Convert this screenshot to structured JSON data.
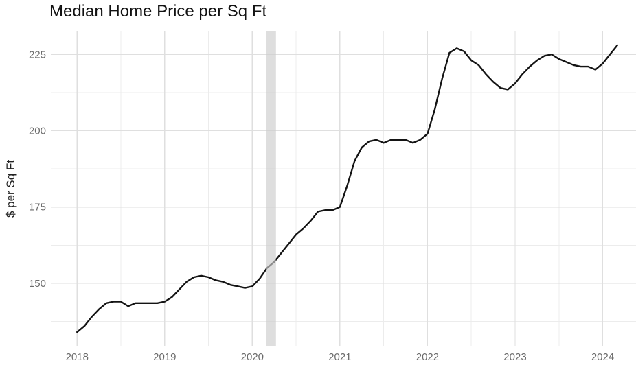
{
  "chart_data": {
    "type": "line",
    "title": "Median Home Price per Sq Ft",
    "xlabel": "",
    "ylabel": "$ per Sq Ft",
    "frequency": "monthly",
    "x_start": "2018-01",
    "x_end": "2024-03",
    "x_start_year": 2018,
    "series": [
      {
        "name": "median_home_price_per_sqft",
        "values": [
          134,
          136,
          139,
          141.5,
          143.5,
          144,
          144,
          142.5,
          143.5,
          143.5,
          143.5,
          143.5,
          144,
          145.5,
          148,
          150.5,
          152,
          152.5,
          152,
          151,
          150.5,
          149.5,
          149,
          148.5,
          149,
          151.5,
          155,
          157,
          160,
          163,
          166,
          168,
          170.5,
          173.5,
          174,
          174,
          175,
          182,
          190,
          194.5,
          196.5,
          197,
          196,
          197,
          197,
          197,
          196,
          197,
          199,
          207,
          217,
          225.5,
          227,
          226,
          223,
          221.5,
          218.5,
          216,
          214,
          213.5,
          215.5,
          218.5,
          221,
          223,
          224.5,
          225,
          223.5,
          222.5,
          221.5,
          221,
          221,
          220,
          222,
          225,
          228
        ]
      }
    ],
    "x_ticks": [
      2018,
      2019,
      2020,
      2021,
      2022,
      2023,
      2024
    ],
    "x_minor_ticks": [
      2018.5,
      2019.5,
      2020.5,
      2021.5,
      2022.5,
      2023.5
    ],
    "y_ticks": [
      150,
      175,
      200,
      225
    ],
    "y_minor_ticks": [
      137.5,
      162.5,
      187.5,
      212.5
    ],
    "xlim": [
      2017.7,
      2024.38
    ],
    "ylim": [
      129.3,
      232.7
    ],
    "grid": true,
    "legend": "none",
    "band": {
      "x0": 2020.16,
      "x1": 2020.27,
      "color": "#CDCDCD",
      "opacity": 0.65
    },
    "colors": {
      "line": "#141414",
      "grid_major": "#DFDFDF",
      "grid_minor": "#ECECEC",
      "axis_text": "#6B6B6B",
      "title_text": "#121212",
      "background": "#FFFFFF"
    }
  }
}
